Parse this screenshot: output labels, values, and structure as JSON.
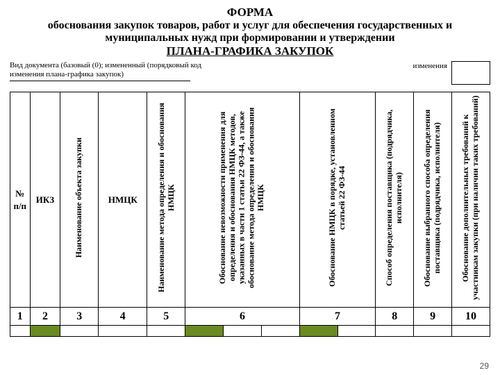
{
  "page_number": "29",
  "title": {
    "line1": "ФОРМА",
    "line2": "обоснования закупок товаров, работ и услуг для обеспечения государственных и",
    "line3": "муниципальных нужд при формировании и утверждении",
    "line4": "ПЛАНА-ГРАФИКА ЗАКУПОК"
  },
  "meta": {
    "left_l1": "Вид документа (базовый (0); измененный (порядковый код",
    "left_l2": "изменения плана-графика закупок)",
    "right_label": "изменения"
  },
  "headers": {
    "h1": "№ п/п",
    "h2": "ИКЗ",
    "h3": "Наименование объекта закупки",
    "h4": "НМЦК",
    "h5": "Наименование метода определения и обоснования НМЦК",
    "h6a": "Обоснование невозможности применения для определения и обоснования НМЦК методов, указанных в части 1 статьи 22 ФЗ-44, а также обоснование метода определения и обоснования НМЦК",
    "h6b": "",
    "h6c": "",
    "h7a": "Обоснование НМЦК в порядке, установленном статьей 22 ФЗ-44",
    "h7b": "",
    "h8": "Способ определения поставщика (подрядчика, исполнителя)",
    "h9": "Обоснование выбранного способа определения поставщика (подрядчика, исполнителя)",
    "h10": "Обоснование дополнительных требований к участникам закупки (при наличии таких требований)"
  },
  "numbers": {
    "n1": "1",
    "n2": "2",
    "n3": "3",
    "n4": "4",
    "n5": "5",
    "n6": "6",
    "n7": "7",
    "n8": "8",
    "n9": "9",
    "n10": "10"
  },
  "colors": {
    "highlight": "#6a8a22",
    "border": "#000000",
    "bg": "#ffffff"
  }
}
